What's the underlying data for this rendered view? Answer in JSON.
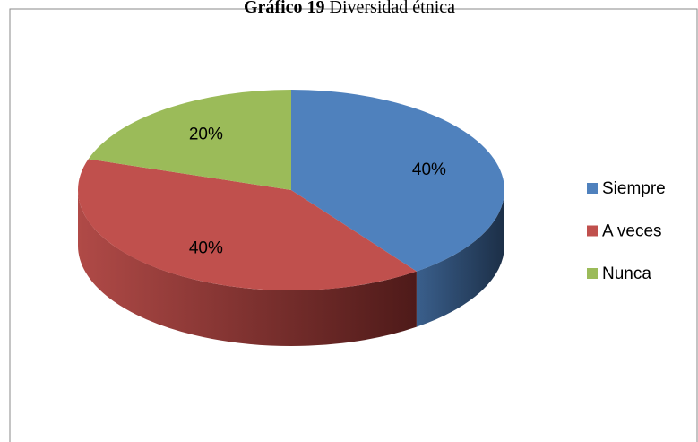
{
  "chart_data": {
    "type": "pie",
    "title_number": "Gráfico 19",
    "title": "Diversidad étnica",
    "categories": [
      "Siempre",
      "A veces",
      "Nunca"
    ],
    "values": [
      40,
      40,
      20
    ],
    "value_labels": [
      "40%",
      "40%",
      "20%"
    ],
    "colors": [
      "#4f81bd",
      "#c0504d",
      "#9bbb59"
    ],
    "legend": "right"
  }
}
